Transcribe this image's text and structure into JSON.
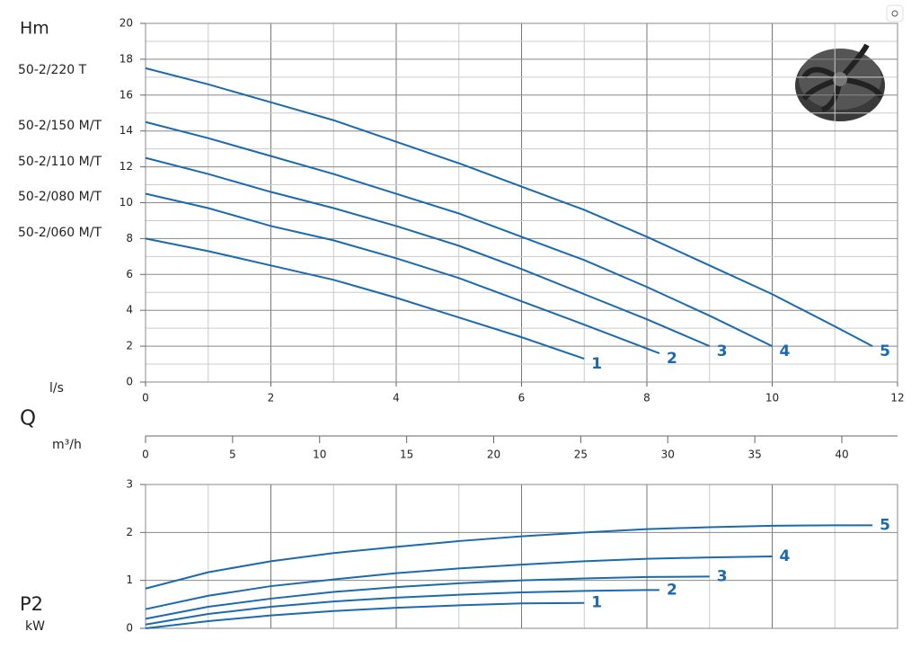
{
  "chart_data": [
    {
      "type": "line",
      "ylabel": "Hm",
      "xlabel": "Q",
      "xunit": "l/s",
      "x2unit": "m³/h",
      "annotations": [
        "50-2/220 T",
        "50-2/150 M/T",
        "50-2/110 M/T",
        "50-2/080 M/T",
        "50-2/060 M/T"
      ],
      "xlim": [
        0,
        12
      ],
      "xticks": [
        0,
        2,
        4,
        6,
        8,
        10,
        12
      ],
      "xgrid": [
        1,
        2,
        3,
        4,
        5,
        6,
        7,
        8,
        9,
        10,
        11
      ],
      "ylim": [
        0,
        20
      ],
      "yticks": [
        0,
        2,
        4,
        6,
        8,
        10,
        12,
        14,
        16,
        18,
        20
      ],
      "ygrid": [
        1,
        2,
        3,
        4,
        5,
        6,
        7,
        8,
        9,
        10,
        11,
        12,
        13,
        14,
        15,
        16,
        17,
        18,
        19
      ],
      "x2lim": [
        0,
        43.2
      ],
      "x2ticks": [
        0,
        5,
        10,
        15,
        20,
        25,
        30,
        35,
        40
      ],
      "series": [
        {
          "name": "1",
          "color": "#1a6aad",
          "x": [
            0,
            1,
            2,
            3,
            4,
            5,
            6,
            7
          ],
          "values": [
            8,
            7.3,
            6.5,
            5.7,
            4.7,
            3.6,
            2.5,
            1.3
          ]
        },
        {
          "name": "2",
          "color": "#1a6aad",
          "x": [
            0,
            1,
            2,
            3,
            4,
            5,
            6,
            7,
            8.2
          ],
          "values": [
            10.5,
            9.7,
            8.7,
            7.9,
            6.9,
            5.8,
            4.5,
            3.2,
            1.6
          ]
        },
        {
          "name": "3",
          "color": "#1a6aad",
          "x": [
            0,
            1,
            2,
            3,
            4,
            5,
            6,
            7,
            8,
            9
          ],
          "values": [
            12.5,
            11.6,
            10.6,
            9.7,
            8.7,
            7.6,
            6.3,
            4.9,
            3.5,
            2
          ]
        },
        {
          "name": "4",
          "color": "#1a6aad",
          "x": [
            0,
            1,
            2,
            3,
            4,
            5,
            6,
            7,
            8,
            9,
            10
          ],
          "values": [
            14.5,
            13.6,
            12.6,
            11.6,
            10.5,
            9.4,
            8.1,
            6.8,
            5.3,
            3.7,
            2
          ]
        },
        {
          "name": "5",
          "color": "#1a6aad",
          "x": [
            0,
            1,
            2,
            3,
            4,
            5,
            6,
            7,
            8,
            9,
            10,
            11,
            11.6
          ],
          "values": [
            17.5,
            16.6,
            15.6,
            14.6,
            13.4,
            12.2,
            10.9,
            9.6,
            8.1,
            6.5,
            4.9,
            3.1,
            2
          ]
        }
      ]
    },
    {
      "type": "line",
      "ylabel": "P2",
      "yunit": "kW",
      "xlim": [
        0,
        12
      ],
      "xgrid": [
        1,
        2,
        3,
        4,
        5,
        6,
        7,
        8,
        9,
        10,
        11
      ],
      "ylim": [
        0,
        3
      ],
      "yticks": [
        0,
        1,
        2,
        3
      ],
      "ygrid": [
        1,
        2
      ],
      "series": [
        {
          "name": "1",
          "color": "#1a6aad",
          "x": [
            0,
            1,
            2,
            3,
            4,
            5,
            6,
            7
          ],
          "values": [
            0,
            0.15,
            0.27,
            0.36,
            0.43,
            0.48,
            0.52,
            0.53
          ]
        },
        {
          "name": "2",
          "color": "#1a6aad",
          "x": [
            0,
            1,
            2,
            3,
            4,
            5,
            6,
            7,
            8,
            8.2
          ],
          "values": [
            0.08,
            0.3,
            0.45,
            0.56,
            0.64,
            0.7,
            0.75,
            0.78,
            0.8,
            0.8
          ]
        },
        {
          "name": "3",
          "color": "#1a6aad",
          "x": [
            0,
            1,
            2,
            3,
            4,
            5,
            6,
            7,
            8,
            9
          ],
          "values": [
            0.2,
            0.45,
            0.62,
            0.76,
            0.86,
            0.94,
            1,
            1.04,
            1.07,
            1.08
          ]
        },
        {
          "name": "4",
          "color": "#1a6aad",
          "x": [
            0,
            1,
            2,
            3,
            4,
            5,
            6,
            7,
            8,
            9,
            10
          ],
          "values": [
            0.4,
            0.68,
            0.88,
            1.02,
            1.15,
            1.25,
            1.33,
            1.4,
            1.45,
            1.48,
            1.5
          ]
        },
        {
          "name": "5",
          "color": "#1a6aad",
          "x": [
            0,
            1,
            2,
            3,
            4,
            5,
            6,
            7,
            8,
            9,
            10,
            11,
            11.6
          ],
          "values": [
            0.83,
            1.17,
            1.4,
            1.57,
            1.7,
            1.82,
            1.92,
            2,
            2.07,
            2.11,
            2.14,
            2.15,
            2.15
          ]
        }
      ]
    }
  ]
}
